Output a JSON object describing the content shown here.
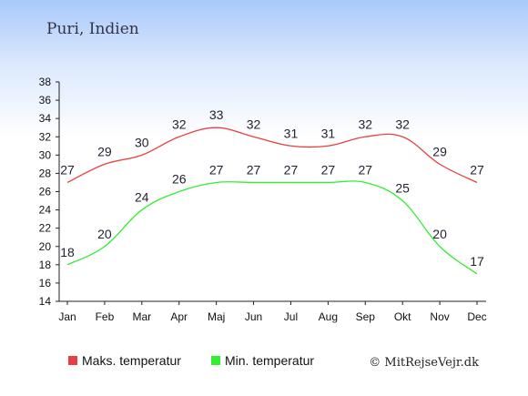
{
  "page": {
    "title": "Puri, Indien",
    "copyright": "© MitRejseVejr.dk"
  },
  "chart_data": {
    "type": "line",
    "title": "Puri, Indien",
    "categories": [
      "Jan",
      "Feb",
      "Mar",
      "Apr",
      "Maj",
      "Jun",
      "Jul",
      "Aug",
      "Sep",
      "Okt",
      "Nov",
      "Dec"
    ],
    "series": [
      {
        "name": "Maks. temperatur",
        "color": "#e84040",
        "values": [
          27,
          29,
          30,
          32,
          33,
          32,
          31,
          31,
          32,
          32,
          29,
          27
        ]
      },
      {
        "name": "Min. temperatur",
        "color": "#33ee33",
        "values": [
          18,
          20,
          24,
          26,
          27,
          27,
          27,
          27,
          27,
          25,
          20,
          17
        ]
      }
    ],
    "yticks": [
      14,
      16,
      18,
      20,
      22,
      24,
      26,
      28,
      30,
      32,
      34,
      36,
      38
    ],
    "ylim": [
      14,
      38
    ],
    "grid": false,
    "legend": "bottom"
  }
}
